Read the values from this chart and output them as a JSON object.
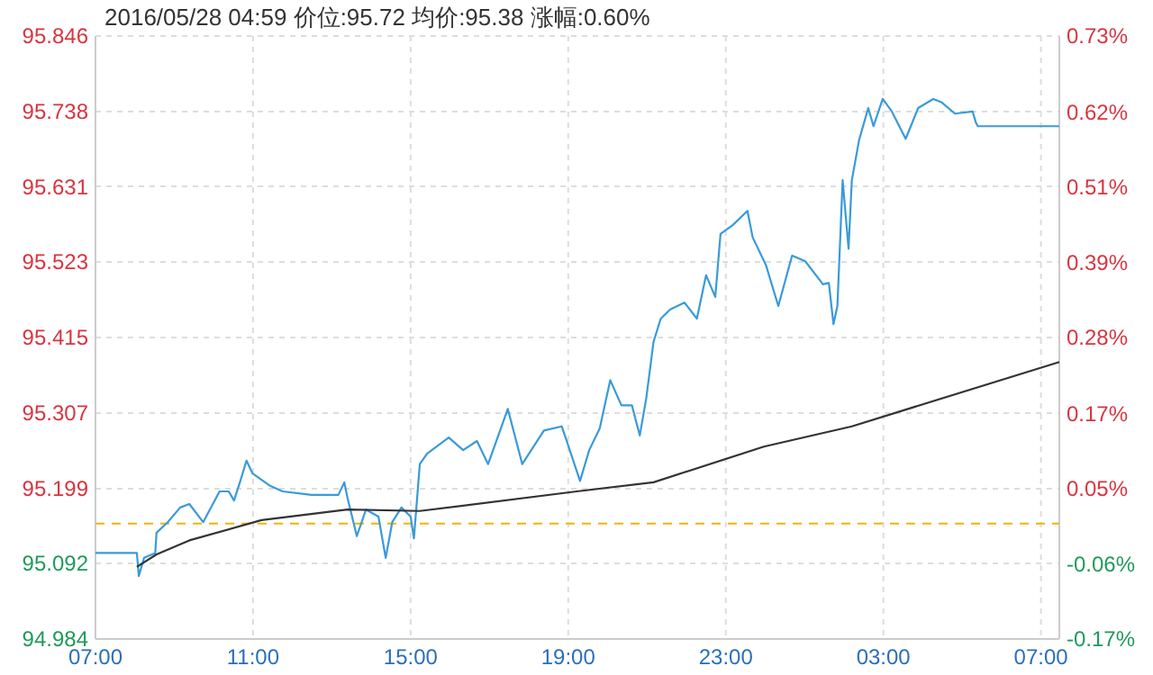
{
  "chart_data": {
    "type": "line",
    "title": "2016/05/28  04:59  价位:95.72  均价:95.38  涨幅:0.60%",
    "xlim": [
      "2016-05-27T07:00",
      "2016-05-28T07:28"
    ],
    "xticks": [
      {
        "value": "2016-05-27T07:00",
        "label": "07:00"
      },
      {
        "value": "2016-05-27T11:00",
        "label": "11:00"
      },
      {
        "value": "2016-05-27T15:00",
        "label": "15:00"
      },
      {
        "value": "2016-05-27T19:00",
        "label": "19:00"
      },
      {
        "value": "2016-05-27T23:00",
        "label": "23:00"
      },
      {
        "value": "2016-05-28T03:00",
        "label": "03:00"
      },
      {
        "value": "2016-05-28T07:00",
        "label": "07:00"
      }
    ],
    "ylim": [
      94.984,
      95.846
    ],
    "yticks": [
      94.984,
      95.092,
      95.199,
      95.307,
      95.415,
      95.523,
      95.631,
      95.738,
      95.846
    ],
    "y2lim": [
      -0.173,
      0.733
    ],
    "y2ticks": [
      {
        "value": -0.173,
        "label": "-0.17%"
      },
      {
        "value": -0.06,
        "label": "-0.06%"
      },
      {
        "value": 0.053,
        "label": "0.05%"
      },
      {
        "value": 0.166,
        "label": "0.17%"
      },
      {
        "value": 0.28,
        "label": "0.28%"
      },
      {
        "value": 0.393,
        "label": "0.39%"
      },
      {
        "value": 0.507,
        "label": "0.51%"
      },
      {
        "value": 0.619,
        "label": "0.62%"
      },
      {
        "value": 0.733,
        "label": "0.73%"
      }
    ],
    "grid": true,
    "line_style": "solid",
    "ref_lines": [
      {
        "axis": "y",
        "value": 95.149,
        "color": "#f0b400",
        "line_style": "dashed"
      }
    ],
    "series": [
      {
        "color": "#3a9ad9",
        "x": [
          "2016-05-27T07:00",
          "2016-05-27T08:03",
          "2016-05-27T08:06",
          "2016-05-27T08:14",
          "2016-05-27T08:31",
          "2016-05-27T08:33",
          "2016-05-27T08:50",
          "2016-05-27T09:09",
          "2016-05-27T09:23",
          "2016-05-27T09:44",
          "2016-05-27T10:09",
          "2016-05-27T10:23",
          "2016-05-27T10:31",
          "2016-05-27T10:40",
          "2016-05-27T10:50",
          "2016-05-27T10:59",
          "2016-05-27T11:26",
          "2016-05-27T11:45",
          "2016-05-27T12:29",
          "2016-05-27T13:10",
          "2016-05-27T13:19",
          "2016-05-27T13:24",
          "2016-05-27T13:35",
          "2016-05-27T13:38",
          "2016-05-27T13:52",
          "2016-05-27T14:11",
          "2016-05-27T14:22",
          "2016-05-27T14:32",
          "2016-05-27T14:46",
          "2016-05-27T15:00",
          "2016-05-27T15:05",
          "2016-05-27T15:14",
          "2016-05-27T15:25",
          "2016-05-27T15:58",
          "2016-05-27T16:20",
          "2016-05-27T16:41",
          "2016-05-27T16:58",
          "2016-05-27T17:28",
          "2016-05-27T17:50",
          "2016-05-27T18:23",
          "2016-05-27T18:50",
          "2016-05-27T18:56",
          "2016-05-27T19:18",
          "2016-05-27T19:32",
          "2016-05-27T19:48",
          "2016-05-27T20:04",
          "2016-05-27T20:21",
          "2016-05-27T20:37",
          "2016-05-27T20:49",
          "2016-05-27T20:59",
          "2016-05-27T21:10",
          "2016-05-27T21:21",
          "2016-05-27T21:35",
          "2016-05-27T21:57",
          "2016-05-27T22:16",
          "2016-05-27T22:30",
          "2016-05-27T22:44",
          "2016-05-27T22:52",
          "2016-05-27T23:11",
          "2016-05-27T23:33",
          "2016-05-27T23:41",
          "2016-05-28T00:01",
          "2016-05-28T00:20",
          "2016-05-28T00:41",
          "2016-05-28T01:01",
          "2016-05-28T01:28",
          "2016-05-28T01:37",
          "2016-05-28T01:44",
          "2016-05-28T01:50",
          "2016-05-28T01:58",
          "2016-05-28T02:07",
          "2016-05-28T02:12",
          "2016-05-28T02:23",
          "2016-05-28T02:37",
          "2016-05-28T02:45",
          "2016-05-28T02:59",
          "2016-05-28T03:13",
          "2016-05-28T03:34",
          "2016-05-28T03:53",
          "2016-05-28T04:16",
          "2016-05-28T04:29",
          "2016-05-28T04:49",
          "2016-05-28T05:16",
          "2016-05-28T05:21",
          "2016-05-28T05:24",
          "2016-05-28T07:28"
        ],
        "values": [
          95.107,
          95.107,
          95.074,
          95.1,
          95.107,
          95.136,
          95.151,
          95.172,
          95.177,
          95.151,
          95.195,
          95.195,
          95.182,
          95.208,
          95.239,
          95.221,
          95.203,
          95.195,
          95.19,
          95.19,
          95.208,
          95.185,
          95.143,
          95.131,
          95.169,
          95.159,
          95.1,
          95.151,
          95.172,
          95.159,
          95.128,
          95.234,
          95.249,
          95.272,
          95.254,
          95.267,
          95.234,
          95.313,
          95.234,
          95.282,
          95.288,
          95.272,
          95.21,
          95.254,
          95.285,
          95.354,
          95.318,
          95.318,
          95.275,
          95.329,
          95.409,
          95.442,
          95.455,
          95.465,
          95.442,
          95.504,
          95.473,
          95.563,
          95.576,
          95.596,
          95.558,
          95.519,
          95.46,
          95.532,
          95.524,
          95.491,
          95.493,
          95.434,
          95.46,
          95.64,
          95.542,
          95.64,
          95.697,
          95.743,
          95.717,
          95.756,
          95.738,
          95.699,
          95.743,
          95.756,
          95.751,
          95.735,
          95.738,
          95.722,
          95.717,
          95.717
        ]
      },
      {
        "color": "#333333",
        "x": [
          "2016-05-27T08:03",
          "2016-05-27T08:33",
          "2016-05-27T09:23",
          "2016-05-27T11:13",
          "2016-05-27T13:24",
          "2016-05-27T15:14",
          "2016-05-27T19:13",
          "2016-05-27T21:10",
          "2016-05-27T23:58",
          "2016-05-28T02:12",
          "2016-05-28T07:28"
        ],
        "values": [
          95.087,
          95.105,
          95.125,
          95.154,
          95.169,
          95.167,
          95.195,
          95.208,
          95.259,
          95.288,
          95.38
        ]
      }
    ]
  }
}
